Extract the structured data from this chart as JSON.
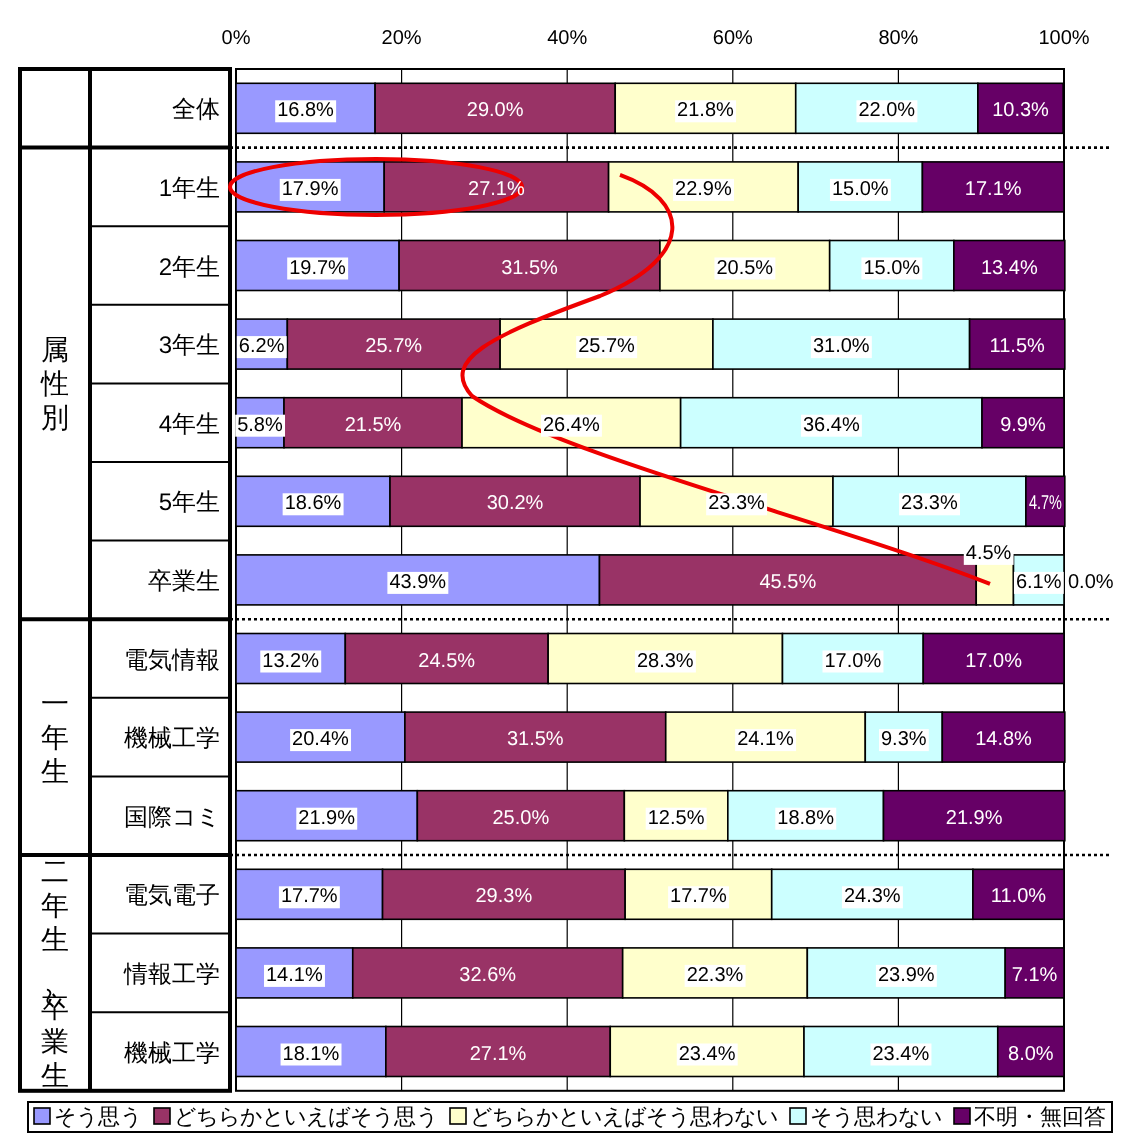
{
  "chart_data": {
    "type": "bar",
    "orientation": "horizontal",
    "stacked": true,
    "grid": "x",
    "legend": "bottom",
    "categories": [
      "全体",
      "1年生",
      "2年生",
      "3年生",
      "4年生",
      "5年生",
      "卒業生",
      "電気情報",
      "機械工学",
      "国際コミ",
      "電気電子",
      "情報工学",
      "機械工学"
    ],
    "xlim": [
      0,
      100
    ],
    "xticks": [
      {
        "value": 0,
        "label": "0%"
      },
      {
        "value": 20,
        "label": "20%"
      },
      {
        "value": 40,
        "label": "40%"
      },
      {
        "value": 60,
        "label": "60%"
      },
      {
        "value": 80,
        "label": "80%"
      },
      {
        "value": 100,
        "label": "100%"
      }
    ],
    "annotations": [
      "属性別",
      "一年生",
      "二年生～卒業生"
    ],
    "series": [
      {
        "name": "そう思う",
        "color": "#9999ff",
        "values": [
          16.8,
          17.9,
          19.7,
          6.2,
          5.8,
          18.6,
          43.9,
          13.2,
          20.4,
          21.9,
          17.7,
          14.1,
          18.1
        ],
        "value_labels": [
          "16.8%",
          "17.9%",
          "19.7%",
          "6.2%",
          "5.8%",
          "18.6%",
          "43.9%",
          "13.2%",
          "20.4%",
          "21.9%",
          "17.7%",
          "14.1%",
          "18.1%"
        ]
      },
      {
        "name": "どちらかといえばそう思う",
        "color": "#993366",
        "values": [
          29.0,
          27.1,
          31.5,
          25.7,
          21.5,
          30.2,
          45.5,
          24.5,
          31.5,
          25.0,
          29.3,
          32.6,
          27.1
        ],
        "value_labels": [
          "29.0%",
          "27.1%",
          "31.5%",
          "25.7%",
          "21.5%",
          "30.2%",
          "45.5%",
          "24.5%",
          "31.5%",
          "25.0%",
          "29.3%",
          "32.6%",
          "27.1%"
        ]
      },
      {
        "name": "どちらかといえばそう思わない",
        "color": "#ffffcc",
        "values": [
          21.8,
          22.9,
          20.5,
          25.7,
          26.4,
          23.3,
          4.5,
          28.3,
          24.1,
          12.5,
          17.7,
          22.3,
          23.4
        ],
        "value_labels": [
          "21.8%",
          "22.9%",
          "20.5%",
          "25.7%",
          "26.4%",
          "23.3%",
          "4.5%",
          "28.3%",
          "24.1%",
          "12.5%",
          "17.7%",
          "22.3%",
          "23.4%"
        ]
      },
      {
        "name": "そう思わない",
        "color": "#ccffff",
        "values": [
          22.0,
          15.0,
          15.0,
          31.0,
          36.4,
          23.3,
          6.1,
          17.0,
          9.3,
          18.8,
          24.3,
          23.9,
          23.4
        ],
        "value_labels": [
          "22.0%",
          "15.0%",
          "15.0%",
          "31.0%",
          "36.4%",
          "23.3%",
          "6.1%",
          "17.0%",
          "9.3%",
          "18.8%",
          "24.3%",
          "23.9%",
          "23.4%"
        ]
      },
      {
        "name": "不明・無回答",
        "color": "#660066",
        "values": [
          10.3,
          17.1,
          13.4,
          11.5,
          9.9,
          4.7,
          0.0,
          17.0,
          14.8,
          21.9,
          11.0,
          7.1,
          8.0
        ],
        "value_labels": [
          "10.3%",
          "17.1%",
          "13.4%",
          "11.5%",
          "9.9%",
          "4.7%",
          "0.0%",
          "17.0%",
          "14.8%",
          "21.9%",
          "11.0%",
          "7.1%",
          "8.0%"
        ]
      }
    ]
  }
}
